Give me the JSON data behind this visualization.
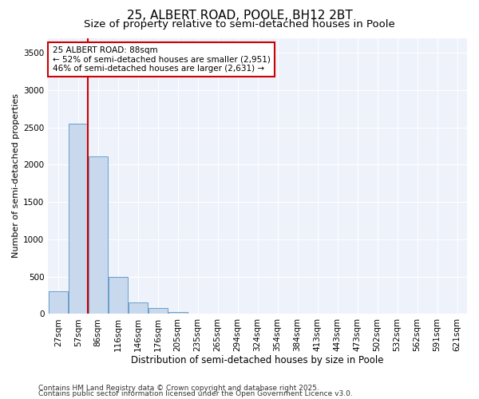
{
  "title1": "25, ALBERT ROAD, POOLE, BH12 2BT",
  "title2": "Size of property relative to semi-detached houses in Poole",
  "xlabel": "Distribution of semi-detached houses by size in Poole",
  "ylabel": "Number of semi-detached properties",
  "categories": [
    "27sqm",
    "57sqm",
    "86sqm",
    "116sqm",
    "146sqm",
    "176sqm",
    "205sqm",
    "235sqm",
    "265sqm",
    "294sqm",
    "324sqm",
    "354sqm",
    "384sqm",
    "413sqm",
    "443sqm",
    "473sqm",
    "502sqm",
    "532sqm",
    "562sqm",
    "591sqm",
    "621sqm"
  ],
  "values": [
    305,
    2550,
    2110,
    500,
    150,
    80,
    30,
    2,
    0,
    0,
    0,
    0,
    0,
    0,
    0,
    0,
    0,
    0,
    0,
    0,
    0
  ],
  "bar_color": "#c8d9ee",
  "bar_edge_color": "#6a9ec8",
  "vline_bar_index": 2,
  "annotation_text_line1": "25 ALBERT ROAD: 88sqm",
  "annotation_text_line2": "← 52% of semi-detached houses are smaller (2,951)",
  "annotation_text_line3": "46% of semi-detached houses are larger (2,631) →",
  "annotation_box_color": "#ffffff",
  "annotation_border_color": "#cc0000",
  "vline_color": "#cc0000",
  "ylim": [
    0,
    3700
  ],
  "yticks": [
    0,
    500,
    1000,
    1500,
    2000,
    2500,
    3000,
    3500
  ],
  "background_color": "#edf2fb",
  "footer1": "Contains HM Land Registry data © Crown copyright and database right 2025.",
  "footer2": "Contains public sector information licensed under the Open Government Licence v3.0.",
  "title1_fontsize": 11,
  "title2_fontsize": 9.5,
  "xlabel_fontsize": 8.5,
  "ylabel_fontsize": 8,
  "tick_fontsize": 7.5,
  "footer_fontsize": 6.5,
  "annotation_fontsize": 7.5
}
